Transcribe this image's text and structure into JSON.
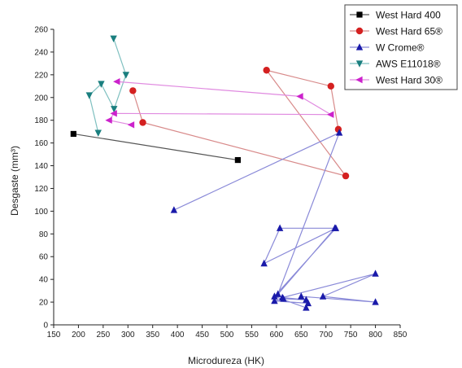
{
  "chart_data": {
    "type": "scatter",
    "xlabel": "Microdureza (HK)",
    "ylabel": "Desgaste (mm³)",
    "xlim": [
      150,
      850
    ],
    "ylim": [
      0,
      260
    ],
    "xticks": [
      150,
      200,
      250,
      300,
      350,
      400,
      450,
      500,
      550,
      600,
      650,
      700,
      750,
      800,
      850
    ],
    "yticks": [
      0,
      20,
      40,
      60,
      80,
      100,
      120,
      140,
      160,
      180,
      200,
      220,
      240,
      260
    ],
    "legend_position": "top-right",
    "series": [
      {
        "name": "West Hard 400",
        "color": "#000000",
        "line_color": "#555555",
        "marker": "square",
        "points": [
          [
            190,
            168
          ],
          [
            522,
            145
          ]
        ]
      },
      {
        "name": "West Hard 65®",
        "color": "#d42020",
        "line_color": "#d88a8a",
        "marker": "circle",
        "points": [
          [
            310,
            206
          ],
          [
            330,
            178
          ],
          [
            740,
            131
          ],
          [
            580,
            224
          ],
          [
            710,
            210
          ],
          [
            725,
            172
          ]
        ]
      },
      {
        "name": "W Crome®",
        "color": "#1a1aaa",
        "line_color": "#8a8ad8",
        "marker": "triangle-up",
        "points": [
          [
            393,
            101
          ],
          [
            727,
            169
          ],
          [
            603,
            27
          ],
          [
            718,
            85
          ],
          [
            607,
            85
          ],
          [
            575,
            54
          ],
          [
            720,
            85
          ],
          [
            596,
            25
          ],
          [
            660,
            15
          ],
          [
            664,
            19
          ],
          [
            596,
            21
          ],
          [
            614,
            23
          ],
          [
            660,
            22
          ],
          [
            612,
            24
          ],
          [
            800,
            45
          ],
          [
            694,
            25
          ],
          [
            800,
            20
          ],
          [
            650,
            25
          ]
        ]
      },
      {
        "name": "AWS E11018®",
        "color": "#1a7f7f",
        "line_color": "#7fc0c0",
        "marker": "triangle-down",
        "points": [
          [
            271,
            252
          ],
          [
            296,
            220
          ],
          [
            272,
            190
          ],
          [
            246,
            212
          ],
          [
            222,
            202
          ],
          [
            240,
            169
          ]
        ]
      },
      {
        "name": "West Hard 30®",
        "color": "#cc22cc",
        "line_color": "#e08ae0",
        "marker": "triangle-left",
        "points": [
          [
            278,
            214
          ],
          [
            648,
            201
          ],
          [
            710,
            185
          ],
          [
            272,
            186
          ],
          [
            262,
            180
          ],
          [
            307,
            176
          ]
        ]
      }
    ]
  }
}
